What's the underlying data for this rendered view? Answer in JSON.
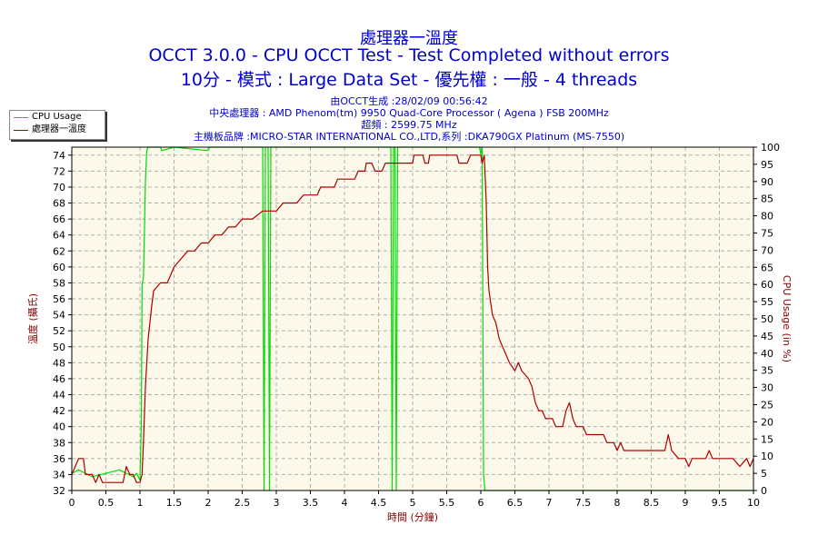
{
  "header": {
    "line1": "處理器一溫度",
    "line2": "OCCT 3.0.0 - CPU OCCT Test - Test Completed without errors",
    "line3": "10分 - 模式 : Large Data Set - 優先權 : 一般 - 4 threads"
  },
  "info": {
    "line1": "由OCCT生成 :28/02/09 00:56:42",
    "line2": "中央處理器 : AMD Phenom(tm) 9950 Quad-Core Processor ( Agena ) FSB 200MHz",
    "line3": "超頻 : 2599.75 MHz",
    "line4": "主機板品牌 :MICRO-STAR INTERNATIONAL CO.,LTD,系列 :DKA790GX Platinum (MS-7550)"
  },
  "legend": {
    "cpu_usage": "CPU Usage",
    "temperature": "處理器一溫度"
  },
  "colors": {
    "cpu_usage": "#00dd00",
    "temperature": "#aa0000",
    "axis_text": "#880000",
    "plot_bg": "#fcf8ea",
    "grid": "#b0b0b0",
    "title": "#0000cc"
  },
  "chart_data": {
    "type": "line",
    "xlabel": "時間 (分鐘)",
    "ylabel_left": "溫度 (攝氏)",
    "ylabel_right": "CPU Usage (in %)",
    "x_range": [
      0,
      10
    ],
    "x_ticks": [
      "0",
      "0.5",
      "1",
      "1.5",
      "2",
      "2.5",
      "3",
      "3.5",
      "4",
      "4.5",
      "5",
      "5.5",
      "6",
      "6.5",
      "7",
      "7.5",
      "8",
      "8.5",
      "9",
      "9.5",
      "10"
    ],
    "y_left_range": [
      32,
      75
    ],
    "y_left_ticks": [
      "32",
      "34",
      "36",
      "38",
      "40",
      "42",
      "44",
      "46",
      "48",
      "50",
      "52",
      "54",
      "56",
      "58",
      "60",
      "62",
      "64",
      "66",
      "68",
      "70",
      "72",
      "74"
    ],
    "y_right_range": [
      0,
      100
    ],
    "y_right_ticks": [
      "0",
      "5",
      "10",
      "15",
      "20",
      "25",
      "30",
      "35",
      "40",
      "45",
      "50",
      "55",
      "60",
      "65",
      "70",
      "75",
      "80",
      "85",
      "90",
      "95",
      "100"
    ],
    "grid": true,
    "series": [
      {
        "name": "處理器一溫度",
        "axis": "left",
        "points": [
          [
            0,
            34
          ],
          [
            0.05,
            35
          ],
          [
            0.1,
            36
          ],
          [
            0.17,
            36
          ],
          [
            0.2,
            34
          ],
          [
            0.3,
            34
          ],
          [
            0.35,
            33
          ],
          [
            0.4,
            34
          ],
          [
            0.45,
            33
          ],
          [
            0.6,
            33
          ],
          [
            0.75,
            33
          ],
          [
            0.8,
            35
          ],
          [
            0.85,
            34
          ],
          [
            0.9,
            34
          ],
          [
            0.95,
            33
          ],
          [
            1.0,
            33
          ],
          [
            1.03,
            34
          ],
          [
            1.05,
            38
          ],
          [
            1.08,
            45
          ],
          [
            1.12,
            51
          ],
          [
            1.17,
            55
          ],
          [
            1.2,
            57
          ],
          [
            1.3,
            58
          ],
          [
            1.4,
            58
          ],
          [
            1.45,
            59
          ],
          [
            1.5,
            60
          ],
          [
            1.6,
            61
          ],
          [
            1.7,
            62
          ],
          [
            1.8,
            62
          ],
          [
            1.9,
            63
          ],
          [
            2.0,
            63
          ],
          [
            2.1,
            64
          ],
          [
            2.2,
            64
          ],
          [
            2.3,
            65
          ],
          [
            2.4,
            65
          ],
          [
            2.5,
            66
          ],
          [
            2.65,
            66
          ],
          [
            2.8,
            67
          ],
          [
            3.0,
            67
          ],
          [
            3.1,
            68
          ],
          [
            3.3,
            68
          ],
          [
            3.4,
            69
          ],
          [
            3.6,
            69
          ],
          [
            3.65,
            70
          ],
          [
            3.85,
            70
          ],
          [
            3.9,
            71
          ],
          [
            4.15,
            71
          ],
          [
            4.2,
            72
          ],
          [
            4.3,
            72
          ],
          [
            4.32,
            73
          ],
          [
            4.4,
            73
          ],
          [
            4.45,
            72
          ],
          [
            4.55,
            72
          ],
          [
            4.6,
            73
          ],
          [
            5.0,
            73
          ],
          [
            5.02,
            74
          ],
          [
            5.15,
            74
          ],
          [
            5.18,
            73
          ],
          [
            5.23,
            73
          ],
          [
            5.25,
            74
          ],
          [
            5.65,
            74
          ],
          [
            5.68,
            73
          ],
          [
            5.8,
            73
          ],
          [
            5.85,
            74
          ],
          [
            6.0,
            74
          ],
          [
            6.02,
            73
          ],
          [
            6.05,
            74
          ],
          [
            6.08,
            68
          ],
          [
            6.1,
            60
          ],
          [
            6.12,
            57
          ],
          [
            6.17,
            54
          ],
          [
            6.22,
            53
          ],
          [
            6.27,
            51
          ],
          [
            6.32,
            50
          ],
          [
            6.37,
            49
          ],
          [
            6.42,
            48
          ],
          [
            6.5,
            47
          ],
          [
            6.55,
            48
          ],
          [
            6.6,
            47
          ],
          [
            6.7,
            46
          ],
          [
            6.75,
            45
          ],
          [
            6.8,
            43
          ],
          [
            6.85,
            42
          ],
          [
            6.9,
            42
          ],
          [
            6.95,
            41
          ],
          [
            7.0,
            41
          ],
          [
            7.05,
            41
          ],
          [
            7.1,
            40
          ],
          [
            7.2,
            40
          ],
          [
            7.25,
            42
          ],
          [
            7.3,
            43
          ],
          [
            7.35,
            41
          ],
          [
            7.4,
            40
          ],
          [
            7.5,
            40
          ],
          [
            7.55,
            39
          ],
          [
            7.8,
            39
          ],
          [
            7.85,
            38
          ],
          [
            7.95,
            38
          ],
          [
            8.0,
            37
          ],
          [
            8.05,
            38
          ],
          [
            8.1,
            37
          ],
          [
            8.2,
            37
          ],
          [
            8.3,
            37
          ],
          [
            8.4,
            37
          ],
          [
            8.5,
            37
          ],
          [
            8.6,
            37
          ],
          [
            8.7,
            37
          ],
          [
            8.75,
            39
          ],
          [
            8.8,
            37
          ],
          [
            8.9,
            36
          ],
          [
            9.0,
            36
          ],
          [
            9.05,
            35
          ],
          [
            9.1,
            36
          ],
          [
            9.2,
            36
          ],
          [
            9.3,
            36
          ],
          [
            9.35,
            37
          ],
          [
            9.4,
            36
          ],
          [
            9.5,
            36
          ],
          [
            9.6,
            36
          ],
          [
            9.7,
            36
          ],
          [
            9.8,
            35
          ],
          [
            9.9,
            36
          ],
          [
            9.95,
            35
          ],
          [
            10.0,
            36
          ]
        ]
      },
      {
        "name": "CPU Usage",
        "axis": "right",
        "points": [
          [
            0,
            5
          ],
          [
            0.1,
            6
          ],
          [
            0.2,
            5
          ],
          [
            0.3,
            4
          ],
          [
            0.5,
            5
          ],
          [
            0.7,
            6
          ],
          [
            0.8,
            5
          ],
          [
            0.9,
            4
          ],
          [
            0.95,
            5
          ],
          [
            1.0,
            3
          ],
          [
            1.02,
            20
          ],
          [
            1.03,
            60
          ],
          [
            1.05,
            62
          ],
          [
            1.06,
            70
          ],
          [
            1.08,
            90
          ],
          [
            1.1,
            99
          ],
          [
            1.12,
            100
          ],
          [
            1.3,
            100
          ],
          [
            1.32,
            99
          ],
          [
            1.5,
            100
          ],
          [
            2.0,
            99
          ],
          [
            2.02,
            100
          ],
          [
            2.8,
            100
          ],
          [
            2.82,
            0
          ],
          [
            2.84,
            100
          ],
          [
            2.88,
            100
          ],
          [
            2.9,
            0
          ],
          [
            2.92,
            100
          ],
          [
            4.68,
            100
          ],
          [
            4.7,
            0
          ],
          [
            4.72,
            100
          ],
          [
            4.74,
            100
          ],
          [
            4.76,
            0
          ],
          [
            4.78,
            100
          ],
          [
            5.98,
            100
          ],
          [
            6.0,
            98
          ],
          [
            6.02,
            100
          ],
          [
            6.04,
            5
          ],
          [
            6.06,
            0
          ],
          [
            10,
            0
          ]
        ]
      }
    ]
  }
}
